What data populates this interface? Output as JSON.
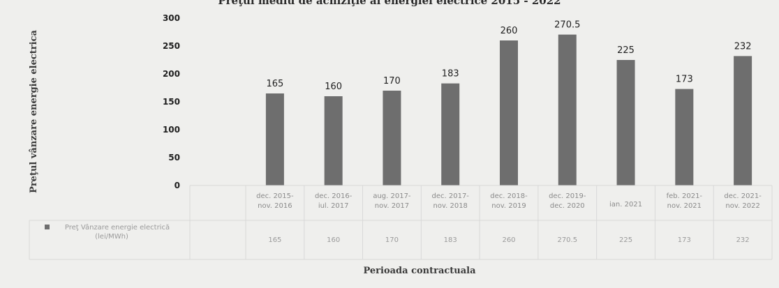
{
  "chart_data": {
    "type": "bar",
    "title": "Preţul mediu de achiziţie al energiei electrice 2015 - 2022",
    "xlabel": "Perioada contractuala",
    "ylabel": "Preţul vânzare energie electrica",
    "ylim": [
      0,
      300
    ],
    "yticks": [
      0,
      50,
      100,
      150,
      200,
      250,
      300
    ],
    "grid": false,
    "legend": "data-table-left",
    "categories": [
      "dec. 2015- nov. 2016",
      "dec. 2016- iul. 2017",
      "aug. 2017- nov. 2017",
      "dec. 2017- nov. 2018",
      "dec. 2018- nov. 2019",
      "dec. 2019- dec. 2020",
      "ian. 2021",
      "feb. 2021- nov. 2021",
      "dec. 2021- nov. 2022"
    ],
    "data_labels": [
      "165",
      "160",
      "170",
      "183",
      "260",
      "270.5",
      "225",
      "173",
      "232"
    ],
    "series": [
      {
        "name": "Preţ Vânzare energie electrică (lei/MWh)",
        "values": [
          165,
          160,
          170,
          183,
          260,
          270.5,
          225,
          173,
          232
        ],
        "color": "#6e6e6e"
      }
    ]
  }
}
